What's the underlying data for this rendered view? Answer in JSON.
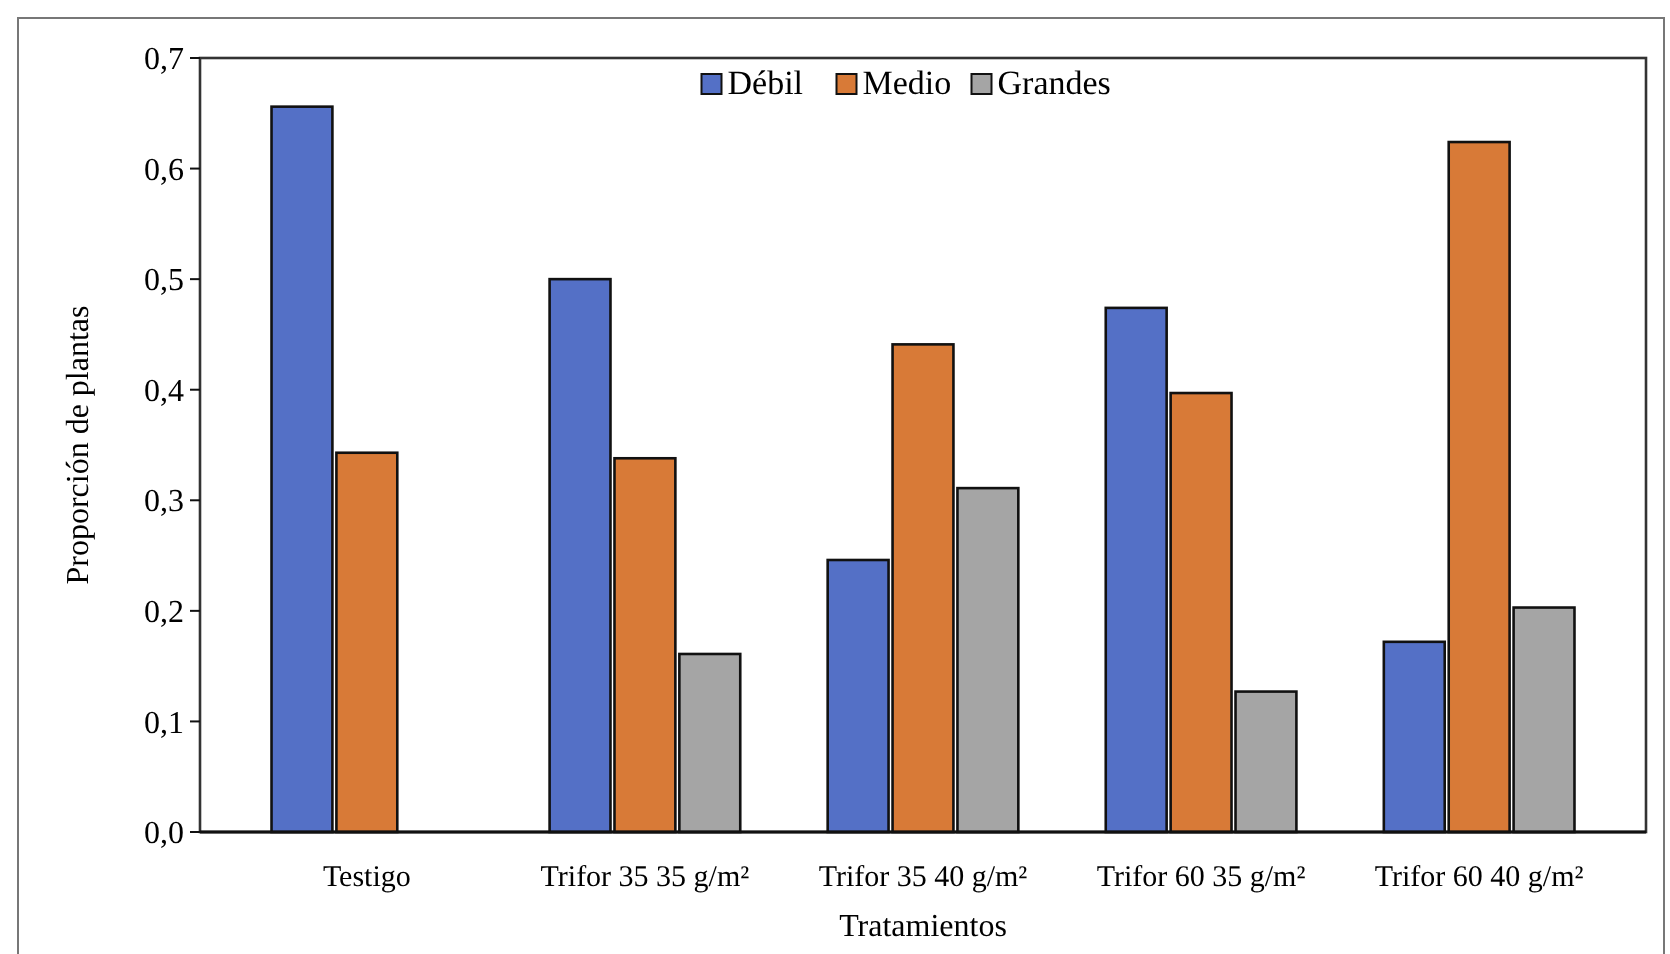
{
  "chart_data": {
    "type": "bar",
    "xlabel": "Tratamientos",
    "ylabel": "Proporción de plantas",
    "categories": [
      "Testigo",
      "Trifor 35 35 g/m²",
      "Trifor 35 40 g/m²",
      "Trifor 60 35 g/m²",
      "Trifor 60 40 g/m²"
    ],
    "series": [
      {
        "name": "Débil",
        "color": "#5470c6",
        "values": [
          0.656,
          0.5,
          0.246,
          0.474,
          0.172
        ]
      },
      {
        "name": "Medio",
        "color": "#d87a37",
        "values": [
          0.343,
          0.338,
          0.441,
          0.397,
          0.624
        ]
      },
      {
        "name": "Grandes",
        "color": "#a5a5a5",
        "values": [
          null,
          0.161,
          0.311,
          0.127,
          0.203
        ]
      }
    ],
    "ylim": [
      0,
      0.7
    ],
    "yticks": [
      {
        "value": 0,
        "label": "0,0"
      },
      {
        "value": 0.1,
        "label": "0,1"
      },
      {
        "value": 0.2,
        "label": "0,2"
      },
      {
        "value": 0.3,
        "label": "0,3"
      },
      {
        "value": 0.4,
        "label": "0,4"
      },
      {
        "value": 0.5,
        "label": "0,5"
      },
      {
        "value": 0.6,
        "label": "0,6"
      },
      {
        "value": 0.7,
        "label": "0,7"
      }
    ],
    "legend": "top",
    "grid": false
  }
}
